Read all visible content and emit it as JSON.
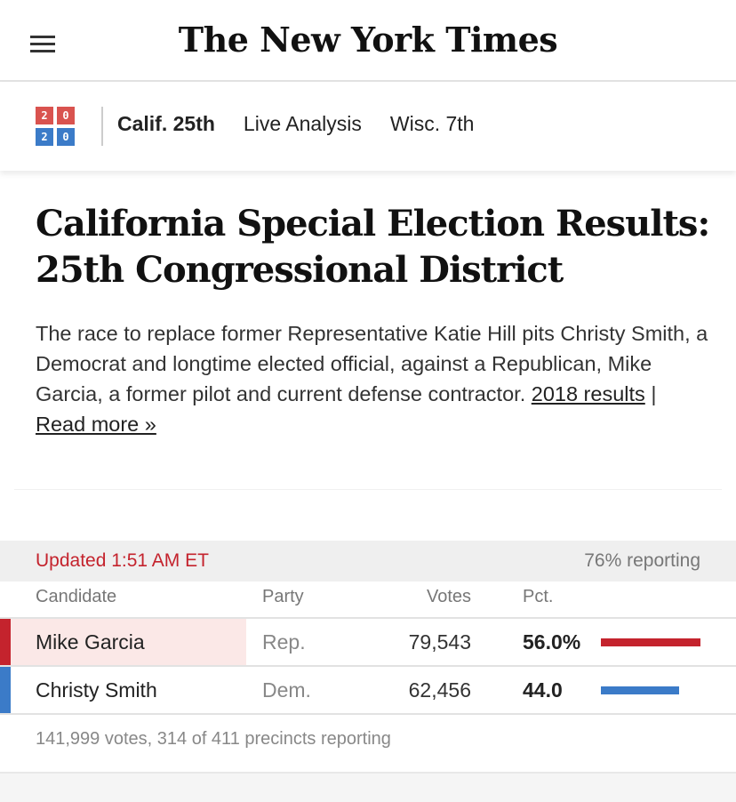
{
  "masthead": {
    "logo": "The New York Times",
    "menu_icon": "hamburger-menu-icon"
  },
  "subnav": {
    "badge": {
      "top": [
        "2",
        "0"
      ],
      "bottom": [
        "2",
        "0"
      ]
    },
    "links": [
      "Calif. 25th",
      "Live Analysis",
      "Wisc. 7th"
    ]
  },
  "article": {
    "headline": "California Special Election Results: 25th Congressional District",
    "deck": "The race to replace former Representative Katie Hill pits Christy Smith, a Democrat and longtime elected official, against a Republican, Mike Garcia, a former pilot and current defense contractor.",
    "link_2018": "2018 results",
    "separator": "|",
    "link_more": "Read more »"
  },
  "results": {
    "updated": "Updated 1:51 AM ET",
    "reporting": "76% reporting",
    "headers": {
      "candidate": "Candidate",
      "party": "Party",
      "votes": "Votes",
      "pct": "Pct."
    },
    "rows": [
      {
        "name": "Mike Garcia",
        "party": "Rep.",
        "votes": "79,543",
        "pct": "56.0%",
        "share": 56.0,
        "color": "#c4232d",
        "highlight": true
      },
      {
        "name": "Christy Smith",
        "party": "Dem.",
        "votes": "62,456",
        "pct": "44.0",
        "share": 44.0,
        "color": "#3b7bc8",
        "highlight": false
      }
    ],
    "footer": "141,999 votes, 314 of 411 precincts reporting"
  }
}
